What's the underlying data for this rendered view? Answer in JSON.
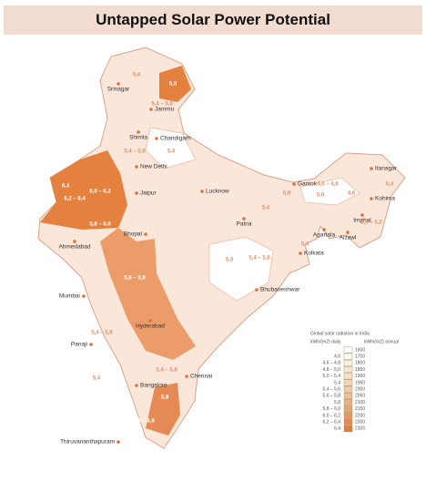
{
  "header": {
    "title": "Untapped Solar Power Potential"
  },
  "cities": [
    "Srinagar",
    "Jammu",
    "Shimla",
    "Chandigarh",
    "New Delhi",
    "Jaipur",
    "Lucknow",
    "Gantok",
    "Patna",
    "Agartala",
    "Ahmedabad",
    "Bhopal",
    "Kolkata",
    "Mumbai",
    "Bhubaneshwar",
    "Hyderabad",
    "Panaji",
    "Chennai",
    "Bangalore",
    "Thiruvananthapuram",
    "Itanagar",
    "Kohima",
    "Imphal",
    "Aizawl"
  ],
  "zone_labels": [
    "5,4",
    "5,8",
    "5,4 – 5,8",
    "5,4 – 5,8",
    "5,4",
    "6,4",
    "6,2 – 6,4",
    "6,0 – 6,2",
    "5,8 – 6,0",
    "4,6 – 4,8",
    "5,0",
    "5,0",
    "4,6",
    "5,0 – 5,2",
    "5,4",
    "5,4",
    "5,4 – 5,8",
    "5,4",
    "5,6 – 5,8",
    "5,4 – 5,8",
    "5,4",
    "5,4 – 5,8",
    "5,8",
    "5,6 – 5,8",
    "5,4"
  ],
  "legend": {
    "title": "Global solar radiation in India",
    "daily_header": "kWh/(m2) daily",
    "annual_header": "kWh/(m2) annual",
    "daily": [
      "4,6",
      "4,6 – 4,8",
      "4,8 – 5,0",
      "5,0 – 5,4",
      "5,4",
      "5,4 – 5,6",
      "5,6 – 5,8",
      "5,8",
      "5,8 – 6,0",
      "6,0 – 6,2",
      "6,2 – 6,4",
      "6,4"
    ],
    "annual": [
      "1600",
      "1700",
      "1800",
      "1850",
      "1900",
      "1950",
      "2000",
      "2050",
      "2100",
      "2150",
      "2200",
      "2300",
      "2305"
    ],
    "colors": [
      "#ffffff",
      "#fdf6f1",
      "#fbeee4",
      "#f9e5d7",
      "#f7dccb",
      "#f5d2bd",
      "#f3c8ae",
      "#f0bc9c",
      "#eeb08a",
      "#eba478",
      "#e89766",
      "#e58a54",
      "#e07c40"
    ]
  }
}
